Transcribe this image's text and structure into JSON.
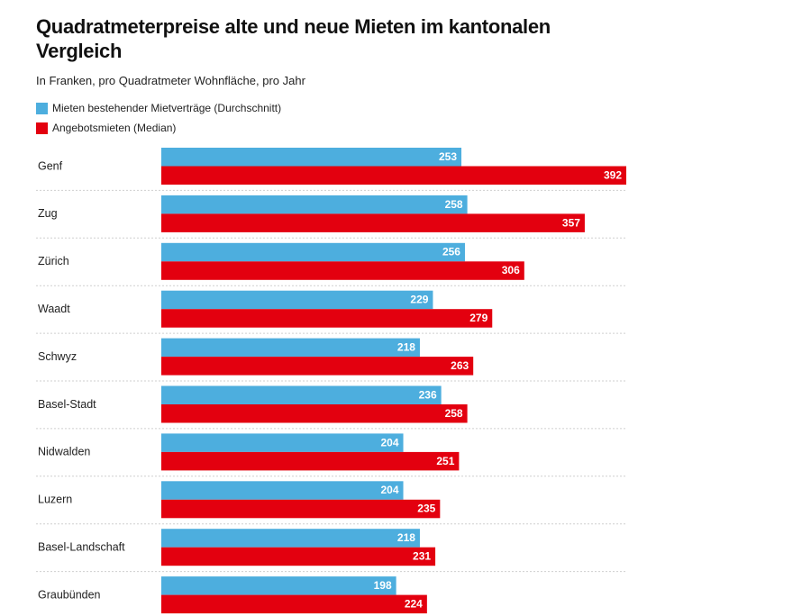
{
  "colors": {
    "current": "#4daede",
    "asking": "#e3000f",
    "separator": "#cfcfcf"
  },
  "chart_data": {
    "type": "bar",
    "orientation": "horizontal",
    "title": "Quadratmeterpreise alte und neue Mieten im kantonalen Vergleich",
    "subtitle": "In Franken, pro Quadratmeter Wohnfläche, pro Jahr",
    "categories": [
      "Genf",
      "Zug",
      "Zürich",
      "Waadt",
      "Schwyz",
      "Basel-Stadt",
      "Nidwalden",
      "Luzern",
      "Basel-Landschaft",
      "Graubünden"
    ],
    "series": [
      {
        "name": "Mieten bestehender Mietverträge (Durchschnitt)",
        "values": [
          253,
          258,
          256,
          229,
          218,
          236,
          204,
          204,
          218,
          198
        ]
      },
      {
        "name": "Angebotsmieten (Median)",
        "values": [
          392,
          357,
          306,
          279,
          263,
          258,
          251,
          235,
          231,
          224
        ]
      }
    ],
    "xlim": [
      0,
      392
    ],
    "grid": false,
    "legend_position": "top-left",
    "data_labels": true
  }
}
